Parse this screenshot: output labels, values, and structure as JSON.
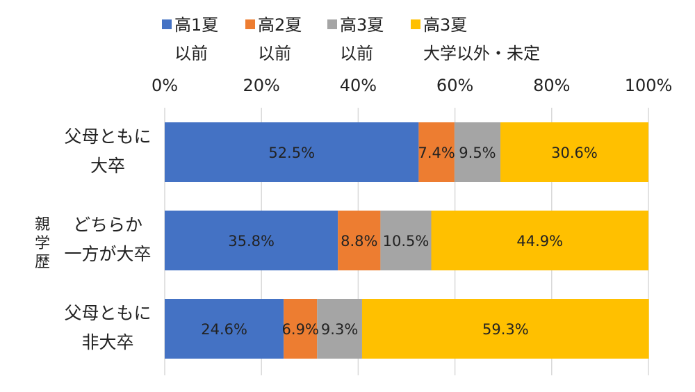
{
  "chart_data": {
    "type": "bar",
    "orientation": "horizontal",
    "stacked": "percent",
    "axis_title": "親学歴",
    "categories": [
      [
        "父母ともに",
        "大卒"
      ],
      [
        "どちらか",
        "一方が大卒"
      ],
      [
        "父母ともに",
        "非大卒"
      ]
    ],
    "xlim": [
      0,
      100
    ],
    "x_ticks": [
      "0%",
      "20%",
      "40%",
      "60%",
      "80%",
      "100%"
    ],
    "grid": true,
    "legend_position": "top",
    "series": [
      {
        "name": [
          "高1夏",
          "以前"
        ],
        "color": "#4472C4",
        "values": [
          52.5,
          35.8,
          24.6
        ],
        "labels": [
          "52.5%",
          "35.8%",
          "24.6%"
        ]
      },
      {
        "name": [
          "高2夏",
          "以前"
        ],
        "color": "#ED7D31",
        "values": [
          7.4,
          8.8,
          6.9
        ],
        "labels": [
          "7.4%",
          "8.8%",
          "6.9%"
        ]
      },
      {
        "name": [
          "高3夏",
          "以前"
        ],
        "color": "#A5A5A5",
        "values": [
          9.5,
          10.5,
          9.3
        ],
        "labels": [
          "9.5%",
          "10.5%",
          "9.3%"
        ]
      },
      {
        "name": [
          "高3夏",
          "大学以外・未定"
        ],
        "color": "#FFC000",
        "values": [
          30.6,
          44.9,
          59.3
        ],
        "labels": [
          "30.6%",
          "44.9%",
          "59.3%"
        ]
      }
    ]
  }
}
